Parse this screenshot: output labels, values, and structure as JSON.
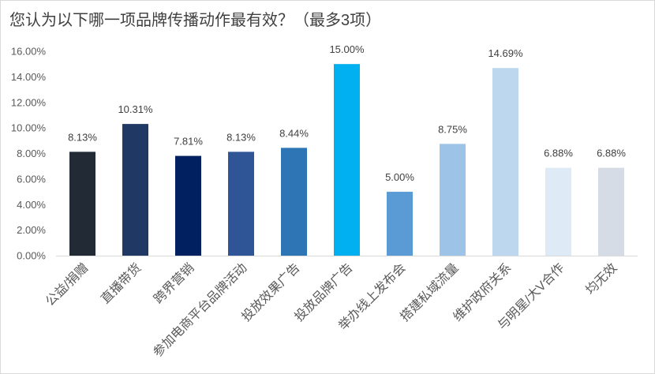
{
  "chart_data": {
    "type": "bar",
    "title": "您认为以下哪一项品牌传播动作最有效？（最多3项）",
    "categories": [
      "公益/捐赠",
      "直播带货",
      "跨界营销",
      "参加电商平台品牌活动",
      "投放效果广告",
      "投放品牌广告",
      "举办线上发布会",
      "搭建私域流量",
      "维护政府关系",
      "与明星/大V合作",
      "均无效"
    ],
    "values": [
      8.13,
      10.31,
      7.81,
      8.13,
      8.44,
      15.0,
      5.0,
      8.75,
      14.69,
      6.88,
      6.88
    ],
    "data_labels": [
      "8.13%",
      "10.31%",
      "7.81%",
      "8.13%",
      "8.44%",
      "15.00%",
      "5.00%",
      "8.75%",
      "14.69%",
      "6.88%",
      "6.88%"
    ],
    "colors": [
      "#222A35",
      "#1F3864",
      "#002060",
      "#2F5597",
      "#2E75B6",
      "#00B0F0",
      "#5B9BD5",
      "#9DC3E6",
      "#BDD7EE",
      "#DEEBF7",
      "#D6DCE5"
    ],
    "ylim": [
      0,
      16
    ],
    "yticks": [
      0,
      2,
      4,
      6,
      8,
      10,
      12,
      14,
      16
    ],
    "ytick_labels": [
      "0.00%",
      "2.00%",
      "4.00%",
      "6.00%",
      "8.00%",
      "10.00%",
      "12.00%",
      "14.00%",
      "16.00%"
    ],
    "grid": false,
    "legend": false
  }
}
